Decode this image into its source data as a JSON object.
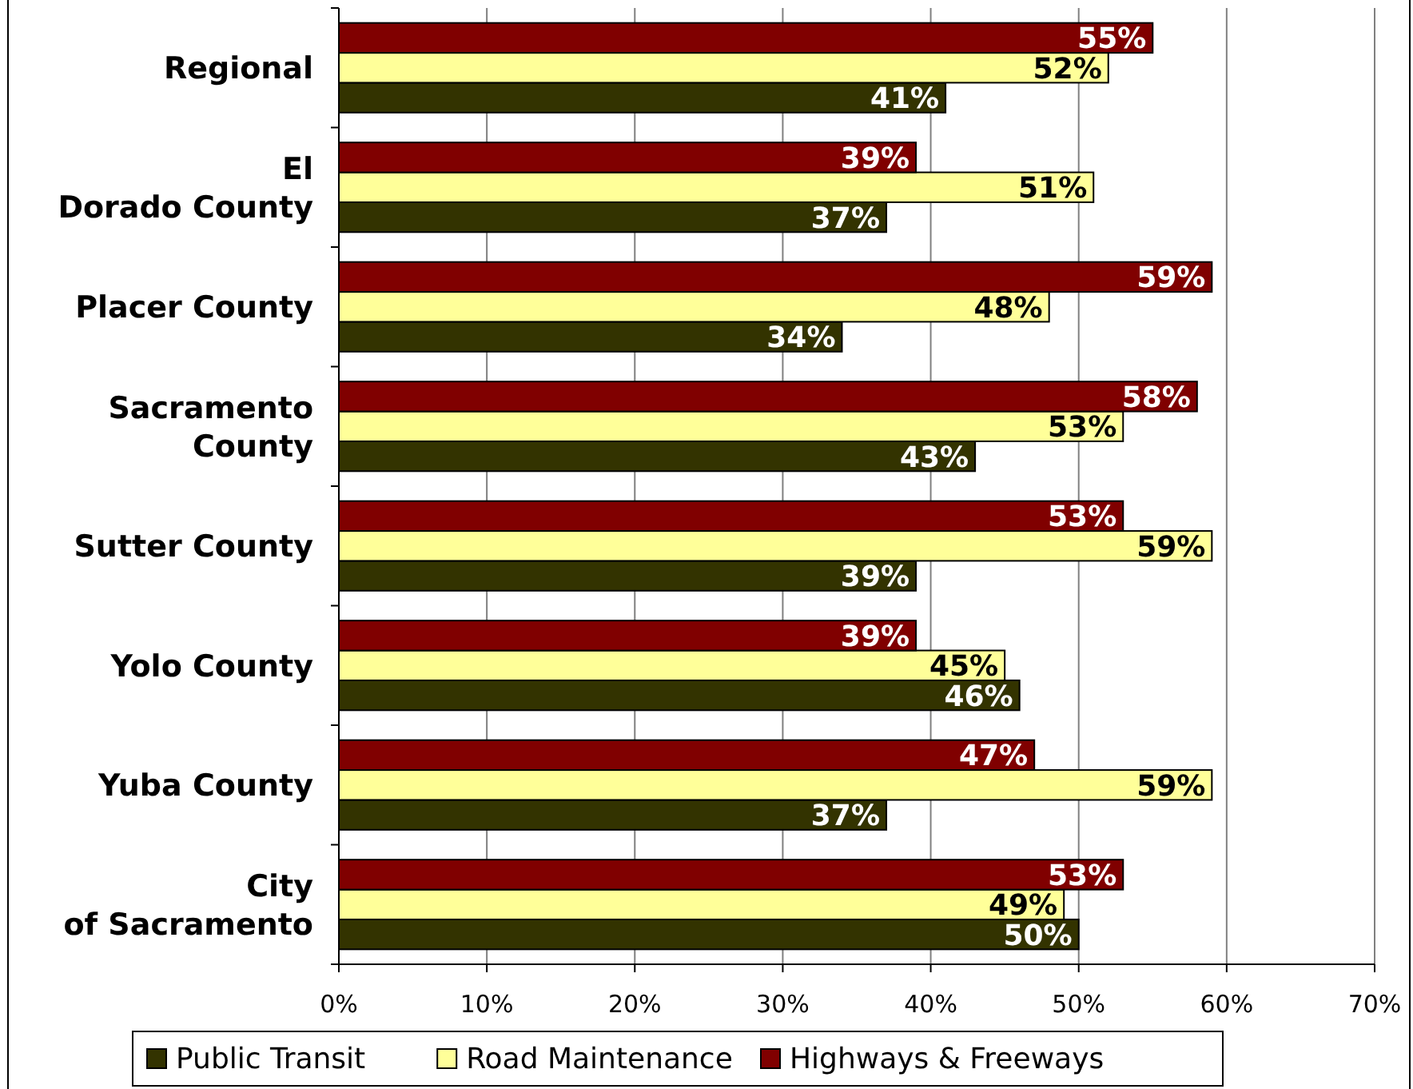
{
  "chart_data": {
    "type": "bar",
    "orientation": "horizontal",
    "categories": [
      "Regional",
      "El Dorado County",
      "Placer County",
      "Sacramento County",
      "Sutter County",
      "Yolo County",
      "Yuba County",
      "City of Sacramento"
    ],
    "series": [
      {
        "name": "Public Transit",
        "color": "#333300",
        "values": [
          41,
          37,
          34,
          43,
          39,
          46,
          37,
          50
        ],
        "value_labels": [
          "41%",
          "37%",
          "34%",
          "43%",
          "39%",
          "46%",
          "37%",
          "50%"
        ]
      },
      {
        "name": "Road Maintenance",
        "color": "#ffff99",
        "values": [
          52,
          51,
          48,
          53,
          59,
          45,
          59,
          49
        ],
        "value_labels": [
          "52%",
          "51%",
          "48%",
          "53%",
          "59%",
          "45%",
          "59%",
          "49%"
        ]
      },
      {
        "name": "Highways & Freeways",
        "color": "#800000",
        "values": [
          55,
          39,
          59,
          58,
          53,
          39,
          47,
          53
        ],
        "value_labels": [
          "55%",
          "39%",
          "59%",
          "58%",
          "53%",
          "39%",
          "47%",
          "53%"
        ]
      }
    ],
    "xlim": [
      0,
      70
    ],
    "xticks": [
      {
        "value": 0,
        "label": "0%"
      },
      {
        "value": 10,
        "label": "10%"
      },
      {
        "value": 20,
        "label": "20%"
      },
      {
        "value": 30,
        "label": "30%"
      },
      {
        "value": 40,
        "label": "40%"
      },
      {
        "value": 50,
        "label": "50%"
      },
      {
        "value": 60,
        "label": "60%"
      },
      {
        "value": 70,
        "label": "70%"
      }
    ],
    "grid": "x",
    "legend": "bottom"
  }
}
